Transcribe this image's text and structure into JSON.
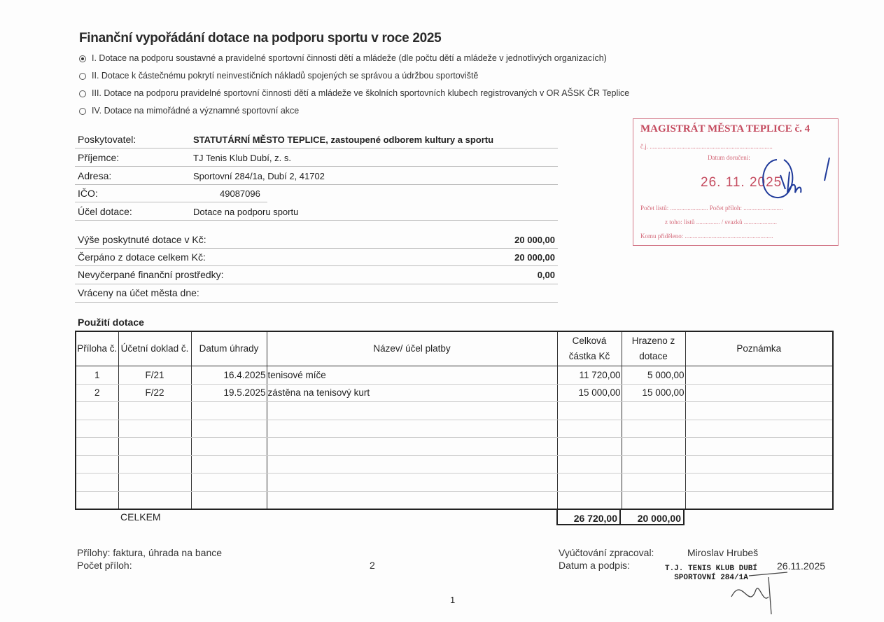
{
  "title": "Finanční vypořádání dotace na podporu sportu v roce 2025",
  "options": [
    {
      "label": "I. Dotace na podporu soustavné a pravidelné sportovní činnosti dětí a mládeže (dle počtu dětí a mládeže v jednotlivých organizacích)",
      "selected": true
    },
    {
      "label": "II. Dotace k  částečnému pokrytí neinvestičních nákladů spojených se správou a údržbou sportoviště",
      "selected": false
    },
    {
      "label": "III. Dotace na podporu pravidelné sportovní činnosti dětí a mládeže ve školních sportovních klubech registrovaných v OR AŠSK ČR Teplice",
      "selected": false
    },
    {
      "label": "IV. Dotace na mimořádné a významné sportovní akce",
      "selected": false
    }
  ],
  "info": [
    {
      "label": "Poskytovatel:",
      "value": "STATUTÁRNÍ MĚSTO TEPLICE, zastoupené odborem kultury a sportu"
    },
    {
      "label": "Příjemce:",
      "value": "TJ Tenis Klub Dubí, z. s."
    },
    {
      "label": "Adresa:",
      "value": "Sportovní 284/1a, Dubí 2, 41702"
    },
    {
      "label": "IČO:",
      "value": "49087096"
    },
    {
      "label": "Účel dotace:",
      "value": "Dotace na podporu sportu"
    }
  ],
  "amounts": [
    {
      "label": "Výše poskytnuté dotace v Kč:",
      "value": "20 000,00"
    },
    {
      "label": "Čerpáno z dotace celkem Kč:",
      "value": "20 000,00"
    },
    {
      "label": "Nevyčerpané finanční  prostředky:",
      "value": "0,00"
    },
    {
      "label": "Vráceny na účet města dne:",
      "value": ""
    }
  ],
  "usage": {
    "title": "Použití dotace",
    "headers": [
      "Příloha č.",
      "Účetní doklad č.",
      "Datum úhrady",
      "Název/ účel platby",
      "Celková částka Kč",
      "Hrazeno z dotace",
      "Poznámka"
    ],
    "rows": [
      [
        "1",
        "F/21",
        "16.4.2025",
        "tenisové míče",
        "11 720,00",
        "5 000,00",
        ""
      ],
      [
        "2",
        "F/22",
        "19.5.2025",
        "zástěna na tenisový kurt",
        "15 000,00",
        "15 000,00",
        ""
      ]
    ],
    "total_label": "CELKEM",
    "total_amount": "26 720,00",
    "total_subsidy": "20 000,00"
  },
  "stamp": {
    "heading": "MAGISTRÁT MĚSTA TEPLICE č. 4",
    "cj": "č.j.",
    "received": "Datum doručení:",
    "date": "26. 11. 2025",
    "sheets": "Počet listů:",
    "attachments": "Počet příloh:",
    "of_which": "z toho: listů",
    "volumes": "/ svazků",
    "assigned": "Komu přiděleno:"
  },
  "footer": {
    "attachments_label": "Přílohy:",
    "attachments_value": "faktura, úhrada na bance",
    "count_label": "Počet příloh:",
    "count_value": "2",
    "prepared_label": "Vyúčtování zpracoval:",
    "prepared_value": "Miroslav Hrubeš",
    "date_label": "Datum a podpis:",
    "date_value": "26.11.2025",
    "club_stamp": "T.J. TENIS KLUB DUBÍ SPORTOVNÍ 284/1A",
    "page_number": "1"
  }
}
